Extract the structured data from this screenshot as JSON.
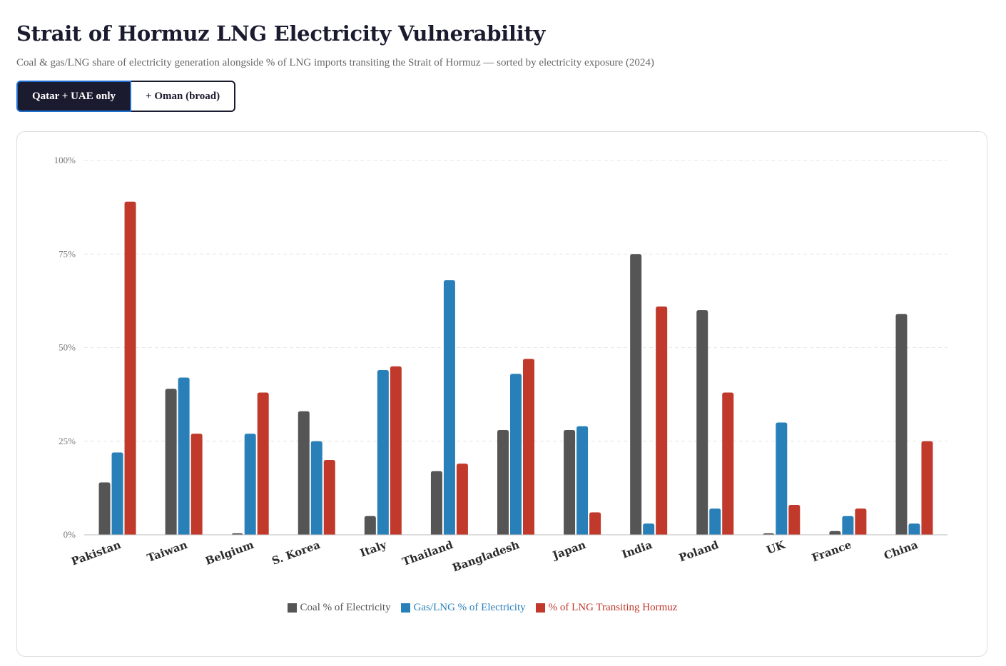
{
  "header": {
    "title": "Strait of Hormuz LNG Electricity Vulnerability",
    "subtitle": "Coal & gas/LNG share of electricity generation alongside % of LNG imports transiting the Strait of Hormuz — sorted by electricity exposure (2024)"
  },
  "toggles": [
    {
      "label": "Qatar + UAE only",
      "active": true
    },
    {
      "label": "+ Oman (broad)",
      "active": false
    }
  ],
  "chart_data": {
    "type": "bar",
    "title": "Strait of Hormuz LNG Electricity Vulnerability",
    "ylim": [
      0,
      100
    ],
    "yticks": [
      0,
      25,
      50,
      75,
      100
    ],
    "ytick_labels": [
      "0%",
      "25%",
      "50%",
      "75%",
      "100%"
    ],
    "grid": true,
    "legend_position": "bottom",
    "categories": [
      "Pakistan",
      "Taiwan",
      "Belgium",
      "S. Korea",
      "Italy",
      "Thailand",
      "Bangladesh",
      "Japan",
      "India",
      "Poland",
      "UK",
      "France",
      "China"
    ],
    "series": [
      {
        "name": "Coal % of Electricity",
        "color": "#555555",
        "values": [
          14,
          39,
          0.4,
          33,
          5,
          17,
          28,
          28,
          75,
          60,
          0.4,
          1,
          59
        ]
      },
      {
        "name": "Gas/LNG % of Electricity",
        "color": "#2980b9",
        "values": [
          22,
          42,
          27,
          25,
          44,
          68,
          43,
          29,
          3,
          7,
          30,
          5,
          3
        ]
      },
      {
        "name": "% of LNG Transiting Hormuz",
        "color": "#c0392b",
        "values": [
          89,
          27,
          38,
          20,
          45,
          19,
          47,
          6,
          61,
          38,
          8,
          7,
          25
        ]
      }
    ]
  }
}
